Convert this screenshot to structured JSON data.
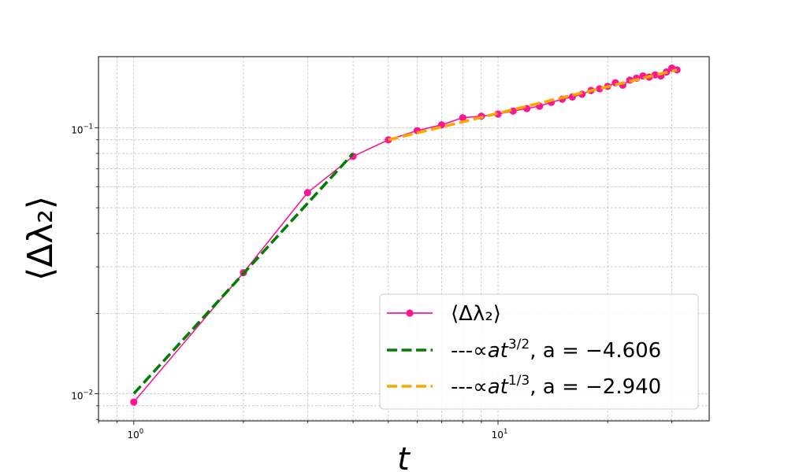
{
  "chart_data": {
    "type": "line",
    "xscale": "log",
    "yscale": "log",
    "xlim": [
      0.8,
      38
    ],
    "ylim": [
      0.0079,
      0.185
    ],
    "xlabel": "t",
    "ylabel": "⟨Δλ₂⟩",
    "grid": true,
    "legend_position": "bottom-right",
    "x_ticks": [
      {
        "value": 1,
        "base": "10",
        "exp": "0"
      },
      {
        "value": 10,
        "base": "10",
        "exp": "1"
      }
    ],
    "y_ticks": [
      {
        "value": 0.01,
        "base": "10",
        "exp": "−2"
      },
      {
        "value": 0.1,
        "base": "10",
        "exp": "−1"
      }
    ],
    "series": [
      {
        "name": "⟨Δλ₂⟩",
        "color": "#ff1493",
        "style": "solid-marker",
        "x": [
          1,
          2,
          3,
          4,
          5,
          6,
          7,
          8,
          9,
          10,
          11,
          12,
          13,
          14,
          15,
          16,
          17,
          18,
          19,
          20,
          21,
          22,
          23,
          24,
          25,
          26,
          27,
          28,
          29,
          30,
          31
        ],
        "y": [
          0.0093,
          0.0285,
          0.057,
          0.078,
          0.09,
          0.0975,
          0.1025,
          0.109,
          0.1105,
          0.1125,
          0.1155,
          0.118,
          0.1205,
          0.1245,
          0.128,
          0.1305,
          0.1335,
          0.138,
          0.14,
          0.143,
          0.1475,
          0.1445,
          0.151,
          0.1535,
          0.1565,
          0.155,
          0.158,
          0.1565,
          0.162,
          0.1675,
          0.165
        ]
      },
      {
        "name": "$\\propto at^{3/2}$, $a = -4.606$",
        "color": "#008000",
        "style": "dashed",
        "x": [
          1,
          4
        ],
        "y": [
          0.01,
          0.08
        ]
      },
      {
        "name": "$\\propto at^{1/3}$, $a = -2.940$",
        "color": "#ffa500",
        "style": "dashed",
        "x": [
          5,
          31
        ],
        "y": [
          0.09,
          0.165
        ]
      }
    ],
    "legend": [
      {
        "label": "⟨Δλ₂⟩",
        "color": "#ff1493",
        "style": "solid-marker"
      },
      {
        "prefix": "---∝",
        "a": "a",
        "t": "t",
        "exp": "3/2",
        "suffix": ", a = −4.606",
        "color": "#008000",
        "style": "dashed"
      },
      {
        "prefix": "---∝",
        "a": "a",
        "t": "t",
        "exp": "1/3",
        "suffix": ", a = −2.940",
        "color": "#ffa500",
        "style": "dashed"
      }
    ]
  }
}
